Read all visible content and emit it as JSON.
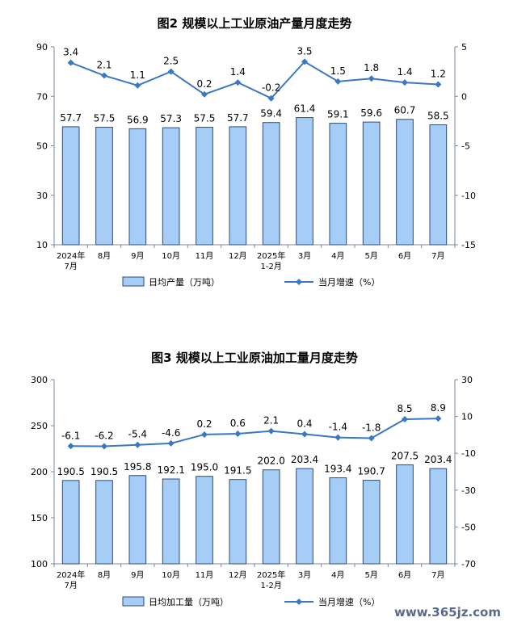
{
  "chart_data": [
    {
      "type": "bar",
      "title": "图2  规模以上工业原油产量月度走势",
      "categories": [
        "2024年\n7月",
        "8月",
        "9月",
        "10月",
        "11月",
        "12月",
        "2025年\n1-2月",
        "3月",
        "4月",
        "5月",
        "6月",
        "7月"
      ],
      "series": [
        {
          "name": "日均产量（万吨）",
          "type": "bar",
          "axis": "left",
          "values": [
            57.7,
            57.5,
            56.9,
            57.3,
            57.5,
            57.7,
            59.4,
            61.4,
            59.1,
            59.6,
            60.7,
            58.5
          ],
          "labels": [
            "57.7",
            "57.5",
            "56.9",
            "57.3",
            "57.5",
            "57.7",
            "59.4",
            "61.4",
            "59.1",
            "59.6",
            "60.7",
            "58.5"
          ]
        },
        {
          "name": "当月增速（%）",
          "type": "line",
          "axis": "right",
          "values": [
            3.4,
            2.1,
            1.1,
            2.5,
            0.2,
            1.4,
            -0.2,
            3.5,
            1.5,
            1.8,
            1.4,
            1.2
          ],
          "labels": [
            "3.4",
            "2.1",
            "1.1",
            "2.5",
            "0.2",
            "1.4",
            "-0.2",
            "3.5",
            "1.5",
            "1.8",
            "1.4",
            "1.2"
          ]
        }
      ],
      "y_left": {
        "range": [
          10,
          90
        ],
        "ticks": [
          "10",
          "30",
          "50",
          "70",
          "90"
        ]
      },
      "y_right": {
        "range": [
          -15,
          5
        ],
        "ticks": [
          "-15",
          "-10",
          "-5",
          "0",
          "5"
        ]
      },
      "legend": "bottom",
      "grid": false,
      "colors": {
        "bar_fill": "#a6cdf5",
        "bar_stroke": "#2f4a7a",
        "line": "#3a78c0"
      }
    },
    {
      "type": "bar",
      "title": "图3  规模以上工业原油加工量月度走势",
      "categories": [
        "2024年\n7月",
        "8月",
        "9月",
        "10月",
        "11月",
        "12月",
        "2025年\n1-2月",
        "3月",
        "4月",
        "5月",
        "6月",
        "7月"
      ],
      "series": [
        {
          "name": "日均加工量（万吨）",
          "type": "bar",
          "axis": "left",
          "values": [
            190.5,
            190.5,
            195.8,
            192.1,
            195.0,
            191.5,
            202.0,
            203.4,
            193.4,
            190.7,
            207.5,
            203.4
          ],
          "labels": [
            "190.5",
            "190.5",
            "195.8",
            "192.1",
            "195.0",
            "191.5",
            "202.0",
            "203.4",
            "193.4",
            "190.7",
            "207.5",
            "203.4"
          ]
        },
        {
          "name": "当月增速（%）",
          "type": "line",
          "axis": "right",
          "values": [
            -6.1,
            -6.2,
            -5.4,
            -4.6,
            0.2,
            0.6,
            2.1,
            0.4,
            -1.4,
            -1.8,
            8.5,
            8.9
          ],
          "labels": [
            "-6.1",
            "-6.2",
            "-5.4",
            "-4.6",
            "0.2",
            "0.6",
            "2.1",
            "0.4",
            "-1.4",
            "-1.8",
            "8.5",
            "8.9"
          ]
        }
      ],
      "y_left": {
        "range": [
          100,
          300
        ],
        "ticks": [
          "100",
          "150",
          "200",
          "250",
          "300"
        ]
      },
      "y_right": {
        "range": [
          -70,
          30
        ],
        "ticks": [
          "-70",
          "-50",
          "-30",
          "-10",
          "10",
          "30"
        ]
      },
      "legend": "bottom",
      "grid": false,
      "colors": {
        "bar_fill": "#a6cdf5",
        "bar_stroke": "#2f4a7a",
        "line": "#3a78c0"
      }
    }
  ],
  "watermark": "www.365jz.com"
}
